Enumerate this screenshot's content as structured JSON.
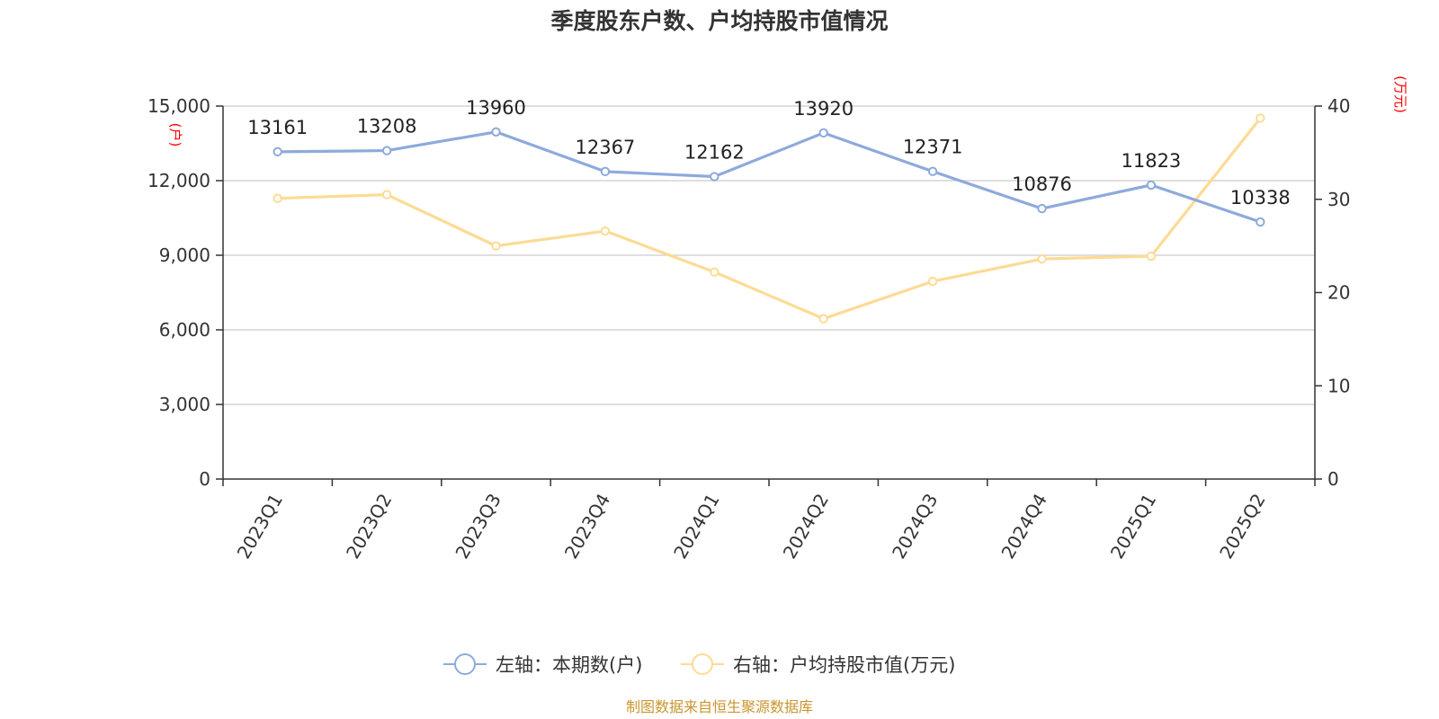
{
  "chart_data": {
    "type": "line",
    "title": "季度股东户数、户均持股市值情况",
    "categories": [
      "2023Q1",
      "2023Q2",
      "2023Q3",
      "2023Q4",
      "2024Q1",
      "2024Q2",
      "2024Q3",
      "2024Q4",
      "2025Q1",
      "2025Q2"
    ],
    "y_left": {
      "unit": "(户)",
      "range": [
        0,
        15000
      ],
      "ticks": [
        "0",
        "3,000",
        "6,000",
        "9,000",
        "12,000",
        "15,000"
      ],
      "tick_values": [
        0,
        3000,
        6000,
        9000,
        12000,
        15000
      ]
    },
    "y_right": {
      "unit": "(万元)",
      "range": [
        0,
        40
      ],
      "ticks": [
        "0",
        "10",
        "20",
        "30",
        "40"
      ],
      "tick_values": [
        0,
        10,
        20,
        30,
        40
      ]
    },
    "grid": true,
    "legend_position": "bottom",
    "series": [
      {
        "name": "左轴：本期数(户)",
        "axis": "left",
        "color": "#8eaadb",
        "values": [
          13161,
          13208,
          13960,
          12367,
          12162,
          13920,
          12371,
          10876,
          11823,
          10338
        ],
        "labels": [
          "13161",
          "13208",
          "13960",
          "12367",
          "12162",
          "13920",
          "12371",
          "10876",
          "11823",
          "10338"
        ]
      },
      {
        "name": "右轴：户均持股市值(万元)",
        "axis": "right",
        "color": "#fddb94",
        "values": [
          30.1,
          30.5,
          25.0,
          26.6,
          22.2,
          17.2,
          21.2,
          23.6,
          23.9,
          38.7
        ]
      }
    ],
    "source": "制图数据来自恒生聚源数据库"
  }
}
